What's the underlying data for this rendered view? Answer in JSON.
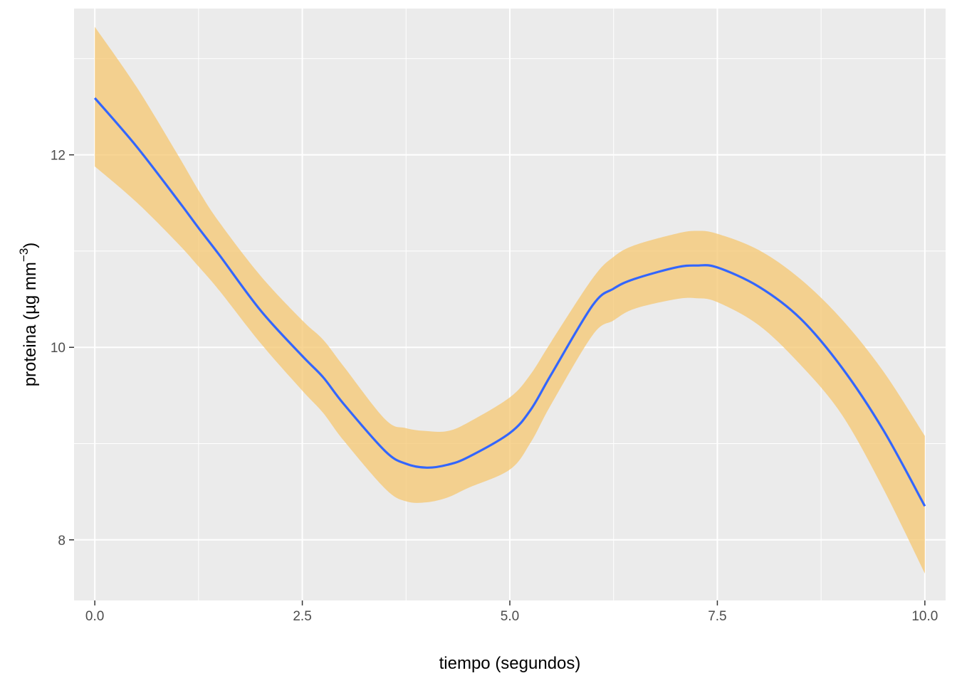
{
  "chart_data": {
    "type": "line",
    "title": "",
    "xlabel": "tiempo (segundos)",
    "ylabel": {
      "main": "proteina (µg mm",
      "superscript": "−3",
      "close": ")"
    },
    "xlim": [
      -0.25,
      10.25
    ],
    "ylim": [
      7.37,
      13.52
    ],
    "x_ticks": [
      {
        "value": 0,
        "label": "0.0"
      },
      {
        "value": 2.5,
        "label": "2.5"
      },
      {
        "value": 5,
        "label": "5.0"
      },
      {
        "value": 7.5,
        "label": "7.5"
      },
      {
        "value": 10,
        "label": "10.0"
      }
    ],
    "y_ticks": [
      {
        "value": 8,
        "label": "8"
      },
      {
        "value": 10,
        "label": "10"
      },
      {
        "value": 12,
        "label": "12"
      }
    ],
    "grid": true,
    "legend": "none",
    "colors": {
      "panel": "#ebebeb",
      "grid": "#ffffff",
      "line": "#3366ff",
      "ribbon": "#f5c56b",
      "ribbon_opacity": 0.72
    },
    "series": [
      {
        "x": [
          0,
          0.5,
          1.0,
          1.25,
          1.5,
          2.0,
          2.5,
          2.75,
          3.0,
          3.5,
          3.75,
          4.0,
          4.25,
          4.5,
          5.0,
          5.25,
          5.5,
          6.0,
          6.25,
          6.5,
          7.0,
          7.25,
          7.5,
          8.0,
          8.5,
          9.0,
          9.5,
          10.0
        ],
        "y": [
          12.59,
          12.09,
          11.53,
          11.24,
          10.96,
          10.38,
          9.91,
          9.69,
          9.41,
          8.92,
          8.79,
          8.75,
          8.78,
          8.86,
          9.11,
          9.35,
          9.72,
          10.44,
          10.61,
          10.71,
          10.83,
          10.85,
          10.83,
          10.63,
          10.3,
          9.79,
          9.14,
          8.35
        ],
        "lower": [
          11.88,
          11.51,
          11.08,
          10.84,
          10.59,
          10.04,
          9.55,
          9.32,
          9.03,
          8.53,
          8.4,
          8.39,
          8.44,
          8.54,
          8.73,
          9.01,
          9.41,
          10.13,
          10.28,
          10.4,
          10.5,
          10.51,
          10.47,
          10.23,
          9.82,
          9.3,
          8.53,
          7.65
        ],
        "upper": [
          13.33,
          12.71,
          12.0,
          11.63,
          11.3,
          10.74,
          10.28,
          10.08,
          9.8,
          9.25,
          9.16,
          9.13,
          9.13,
          9.22,
          9.48,
          9.72,
          10.06,
          10.72,
          10.94,
          11.06,
          11.18,
          11.21,
          11.18,
          11.01,
          10.71,
          10.29,
          9.75,
          9.08
        ]
      }
    ]
  }
}
